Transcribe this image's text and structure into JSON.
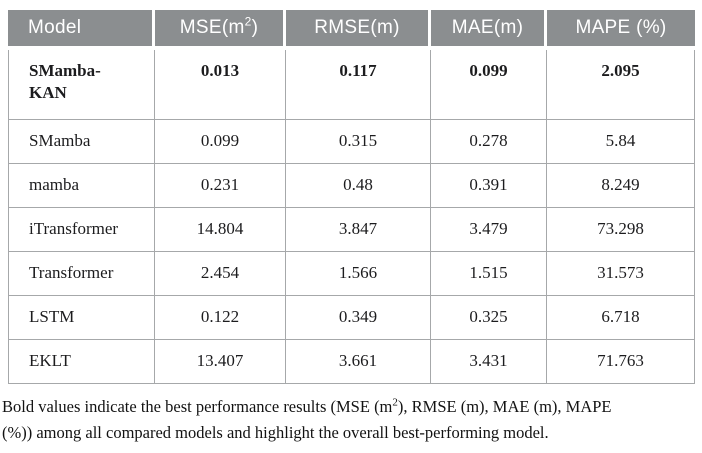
{
  "colors": {
    "header_bg": "#8b8e90",
    "header_text": "#ffffff",
    "border": "#a6a8aa",
    "text": "#1c1c1e"
  },
  "table": {
    "headers": {
      "model": "Model",
      "mse_pre": "MSE(m",
      "mse_sup": "2",
      "mse_post": ")",
      "rmse": "RMSE(m)",
      "mae": "MAE(m)",
      "mape": "MAPE (%)"
    },
    "rows": [
      {
        "model": "SMamba-\nKAN",
        "values": [
          "0.013",
          "0.117",
          "0.099",
          "2.095"
        ]
      },
      {
        "model": "SMamba",
        "values": [
          "0.099",
          "0.315",
          "0.278",
          "5.84"
        ]
      },
      {
        "model": "mamba",
        "values": [
          "0.231",
          "0.48",
          "0.391",
          "8.249"
        ]
      },
      {
        "model": "iTransformer",
        "values": [
          "14.804",
          "3.847",
          "3.479",
          "73.298"
        ]
      },
      {
        "model": "Transformer",
        "values": [
          "2.454",
          "1.566",
          "1.515",
          "31.573"
        ]
      },
      {
        "model": "LSTM",
        "values": [
          "0.122",
          "0.349",
          "0.325",
          "6.718"
        ]
      },
      {
        "model": "EKLT",
        "values": [
          "13.407",
          "3.661",
          "3.431",
          "71.763"
        ]
      }
    ]
  },
  "footnote": {
    "pre": "Bold values indicate the best performance results (MSE (m",
    "sup": "2",
    "post": "), RMSE (m), MAE (m), MAPE\n(%)) among all compared models and highlight the overall best-performing model."
  }
}
